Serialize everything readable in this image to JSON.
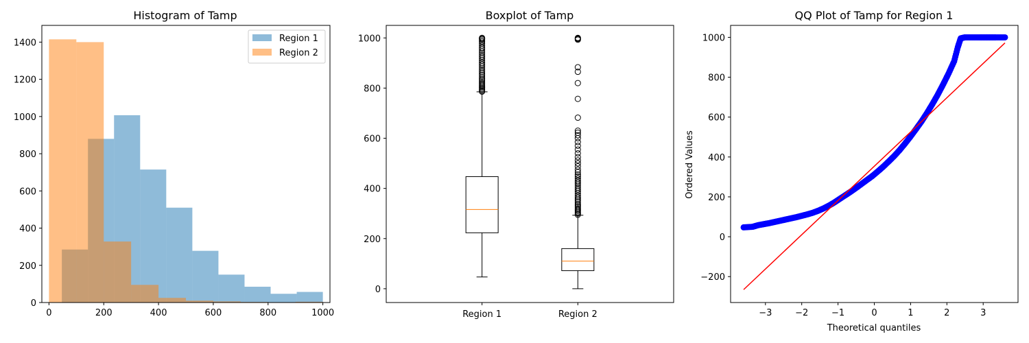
{
  "chart_data": [
    {
      "type": "histogram",
      "title": "Histogram of Tamp",
      "xlim": [
        -26,
        1026
      ],
      "ylim": [
        0,
        1490
      ],
      "xticks": [
        0,
        200,
        400,
        600,
        800,
        1000
      ],
      "yticks": [
        0,
        200,
        400,
        600,
        800,
        1000,
        1200,
        1400
      ],
      "legend": {
        "placement": "upper right",
        "entries": [
          "Region 1",
          "Region 2"
        ]
      },
      "series": [
        {
          "name": "Region 1",
          "color": "#1f77b4",
          "alpha": 0.5,
          "bin_edges": [
            47,
            142.3,
            237.6,
            332.9,
            428.2,
            523.5,
            618.8,
            714.1,
            809.4,
            904.7,
            1000
          ],
          "counts": [
            285,
            880,
            1007,
            715,
            510,
            278,
            150,
            85,
            47,
            57
          ]
        },
        {
          "name": "Region 2",
          "color": "#ff7f0e",
          "alpha": 0.5,
          "bin_edges": [
            0,
            100,
            200,
            300,
            400,
            500,
            600,
            700,
            800,
            900,
            1000
          ],
          "counts": [
            1415,
            1400,
            328,
            95,
            25,
            10,
            6,
            3,
            2,
            4
          ]
        }
      ]
    },
    {
      "type": "boxplot",
      "title": "Boxplot of Tamp",
      "categories": [
        "Region 1",
        "Region 2"
      ],
      "ylim": [
        -55,
        1050
      ],
      "yticks": [
        0,
        200,
        400,
        600,
        800,
        1000
      ],
      "boxes": [
        {
          "name": "Region 1",
          "whisker_low": 47,
          "q1": 223,
          "median": 316,
          "q3": 447,
          "whisker_high": 785,
          "outliers": [
            786,
            790,
            795,
            800,
            805,
            810,
            815,
            820,
            826,
            832,
            838,
            845,
            852,
            858,
            865,
            872,
            880,
            888,
            895,
            902,
            910,
            918,
            925,
            932,
            940,
            948,
            956,
            962,
            970,
            978,
            985,
            990,
            995,
            998,
            1000
          ]
        },
        {
          "name": "Region 2",
          "whisker_low": 0,
          "q1": 72,
          "median": 110,
          "q3": 160,
          "whisker_high": 293,
          "outliers": [
            295,
            300,
            305,
            310,
            315,
            320,
            326,
            332,
            338,
            345,
            352,
            358,
            365,
            372,
            380,
            388,
            395,
            402,
            410,
            418,
            425,
            432,
            440,
            448,
            455,
            465,
            475,
            488,
            500,
            512,
            525,
            540,
            555,
            570,
            585,
            600,
            612,
            622,
            630,
            682,
            757,
            820,
            865,
            883,
            993,
            996,
            998,
            1000
          ]
        }
      ]
    },
    {
      "type": "scatter",
      "title": "QQ Plot of Tamp for Region 1",
      "xlabel": "Theoretical quantiles",
      "ylabel": "Ordered Values",
      "xlim": [
        -3.96,
        3.96
      ],
      "ylim": [
        -330,
        1060
      ],
      "xticks": [
        -3,
        -2,
        -1,
        0,
        1,
        2,
        3
      ],
      "yticks": [
        -200,
        0,
        200,
        400,
        600,
        800,
        1000
      ],
      "xtick_labels": [
        "−3",
        "−2",
        "−1",
        "0",
        "1",
        "2",
        "3"
      ],
      "ytick_labels": [
        "−200",
        "0",
        "200",
        "400",
        "600",
        "800",
        "1000"
      ],
      "fit_line": {
        "x": [
          -3.6,
          3.6
        ],
        "y": [
          -265,
          972
        ],
        "color": "#ff0000"
      },
      "points_color": "#0000ff",
      "points": [
        [
          -3.6,
          47
        ],
        [
          -3.35,
          50
        ],
        [
          -3.2,
          58
        ],
        [
          -3.05,
          63
        ],
        [
          -2.9,
          68
        ],
        [
          -2.75,
          74
        ],
        [
          -2.6,
          80
        ],
        [
          -2.45,
          86
        ],
        [
          -2.3,
          92
        ],
        [
          -2.15,
          98
        ],
        [
          -2.0,
          105
        ],
        [
          -1.85,
          112
        ],
        [
          -1.7,
          120
        ],
        [
          -1.55,
          130
        ],
        [
          -1.4,
          142
        ],
        [
          -1.25,
          156
        ],
        [
          -1.1,
          172
        ],
        [
          -0.95,
          190
        ],
        [
          -0.8,
          208
        ],
        [
          -0.65,
          226
        ],
        [
          -0.5,
          245
        ],
        [
          -0.35,
          265
        ],
        [
          -0.2,
          285
        ],
        [
          -0.05,
          305
        ],
        [
          0.1,
          328
        ],
        [
          0.25,
          352
        ],
        [
          0.4,
          378
        ],
        [
          0.55,
          405
        ],
        [
          0.7,
          435
        ],
        [
          0.85,
          468
        ],
        [
          1.0,
          503
        ],
        [
          1.15,
          540
        ],
        [
          1.3,
          578
        ],
        [
          1.45,
          620
        ],
        [
          1.6,
          665
        ],
        [
          1.75,
          713
        ],
        [
          1.9,
          765
        ],
        [
          2.05,
          820
        ],
        [
          2.2,
          880
        ],
        [
          2.3,
          950
        ],
        [
          2.38,
          995
        ],
        [
          2.5,
          1000
        ],
        [
          2.7,
          1000
        ],
        [
          2.9,
          1000
        ],
        [
          3.05,
          1000
        ],
        [
          3.2,
          1000
        ],
        [
          3.35,
          1000
        ],
        [
          3.6,
          1000
        ]
      ]
    }
  ]
}
